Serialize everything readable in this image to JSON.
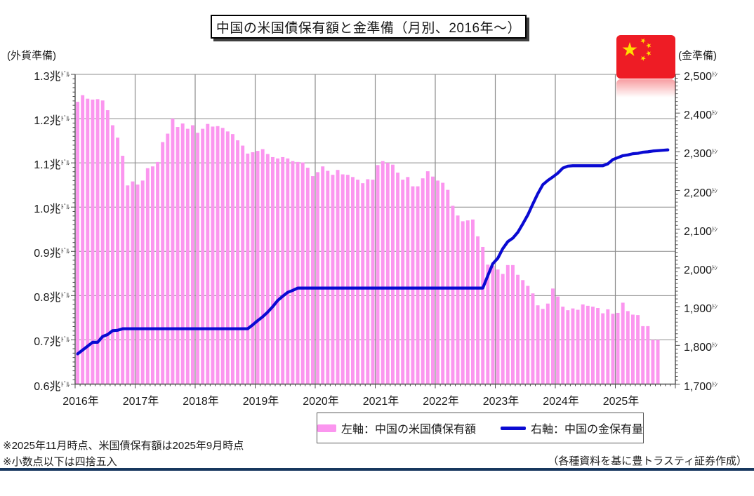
{
  "title": "中国の米国債保有額と金準備（月別、2016年～）",
  "flag": "china-flag",
  "legend": {
    "bar_label": "左軸：中国の米国債保有額",
    "line_label": "右軸：中国の金保有量"
  },
  "notes": [
    "※2025年11月時点、米国債保有額は2025年9月時点",
    "※小数点以下は四捨五入"
  ],
  "source": "（各種資料を基に豊トラスティ証券作成）",
  "chart_data": {
    "type": "bar+line",
    "title": "中国の米国債保有額と金準備（月別、2016年～）",
    "x_start": "2016-01",
    "x_years": [
      "2016年",
      "2017年",
      "2018年",
      "2019年",
      "2020年",
      "2021年",
      "2022年",
      "2023年",
      "2024年",
      "2025年"
    ],
    "left_axis": {
      "header": "(外貨準備)",
      "unit_small": "ﾄﾞﾙ",
      "min": 0.6,
      "max": 1.3,
      "tick_step": 0.1,
      "tick_labels": [
        "1.3兆",
        "1.2兆",
        "1.1兆",
        "1.0兆",
        "0.9兆",
        "0.8兆",
        "0.7兆",
        "0.6兆"
      ]
    },
    "right_axis": {
      "header": "(金準備)",
      "unit_small": "ﾄﾝ",
      "min": 1700,
      "max": 2500,
      "tick_step": 100,
      "tick_labels": [
        "2,500",
        "2,400",
        "2,300",
        "2,200",
        "2,100",
        "2,000",
        "1,900",
        "1,800",
        "1,700"
      ]
    },
    "series": [
      {
        "name": "左軸：中国の米国債保有額",
        "type": "bar",
        "axis": "left",
        "unit": "兆ドル",
        "values": [
          1.238,
          1.253,
          1.245,
          1.243,
          1.244,
          1.241,
          1.219,
          1.185,
          1.157,
          1.116,
          1.049,
          1.058,
          1.051,
          1.06,
          1.088,
          1.092,
          1.102,
          1.147,
          1.166,
          1.2,
          1.181,
          1.189,
          1.177,
          1.185,
          1.168,
          1.177,
          1.188,
          1.182,
          1.183,
          1.179,
          1.171,
          1.165,
          1.151,
          1.139,
          1.121,
          1.124,
          1.127,
          1.131,
          1.12,
          1.113,
          1.11,
          1.113,
          1.11,
          1.104,
          1.102,
          1.101,
          1.089,
          1.07,
          1.079,
          1.092,
          1.082,
          1.073,
          1.084,
          1.074,
          1.073,
          1.068,
          1.062,
          1.054,
          1.063,
          1.062,
          1.095,
          1.104,
          1.1,
          1.096,
          1.078,
          1.062,
          1.068,
          1.047,
          1.047,
          1.065,
          1.081,
          1.069,
          1.06,
          1.055,
          1.039,
          1.003,
          0.981,
          0.968,
          0.97,
          0.972,
          0.934,
          0.91,
          0.87,
          0.867,
          0.859,
          0.849,
          0.869,
          0.869,
          0.847,
          0.835,
          0.822,
          0.805,
          0.778,
          0.77,
          0.782,
          0.816,
          0.798,
          0.775,
          0.767,
          0.771,
          0.768,
          0.78,
          0.777,
          0.775,
          0.772,
          0.76,
          0.769,
          0.759,
          0.761,
          0.784,
          0.765,
          0.757,
          0.756,
          0.731,
          0.731,
          0.7,
          0.7
        ]
      },
      {
        "name": "右軸：中国の金保有量",
        "type": "line",
        "axis": "right",
        "unit": "トン",
        "values": [
          1778,
          1788,
          1798,
          1808,
          1808,
          1823,
          1828,
          1838,
          1839,
          1843,
          1843,
          1843,
          1843,
          1843,
          1843,
          1843,
          1843,
          1843,
          1843,
          1843,
          1843,
          1843,
          1843,
          1843,
          1843,
          1843,
          1843,
          1843,
          1843,
          1843,
          1843,
          1843,
          1843,
          1843,
          1843,
          1853,
          1864,
          1874,
          1886,
          1900,
          1916,
          1927,
          1937,
          1942,
          1948,
          1948,
          1948,
          1948,
          1948,
          1948,
          1948,
          1948,
          1948,
          1948,
          1948,
          1948,
          1948,
          1948,
          1948,
          1948,
          1948,
          1948,
          1948,
          1948,
          1948,
          1948,
          1948,
          1948,
          1948,
          1948,
          1948,
          1948,
          1948,
          1948,
          1948,
          1948,
          1948,
          1948,
          1948,
          1948,
          1948,
          1948,
          1980,
          2011,
          2025,
          2050,
          2068,
          2077,
          2092,
          2114,
          2137,
          2165,
          2192,
          2215,
          2226,
          2235,
          2245,
          2258,
          2263,
          2264,
          2264,
          2264,
          2264,
          2264,
          2264,
          2264,
          2269,
          2280,
          2285,
          2290,
          2292,
          2295,
          2296,
          2299,
          2300,
          2302,
          2303,
          2304,
          2305
        ]
      }
    ],
    "layout": {
      "grid": true,
      "legend_position": "bottom"
    },
    "colors": {
      "bar": "#FB96EF",
      "line": "#0A0AD2",
      "grid": "#8C8C8C",
      "axis": "#4d4d4d",
      "flag_red": "#EE1C25",
      "flag_yellow": "#FFDE00",
      "rule_navy": "#17375E"
    }
  }
}
